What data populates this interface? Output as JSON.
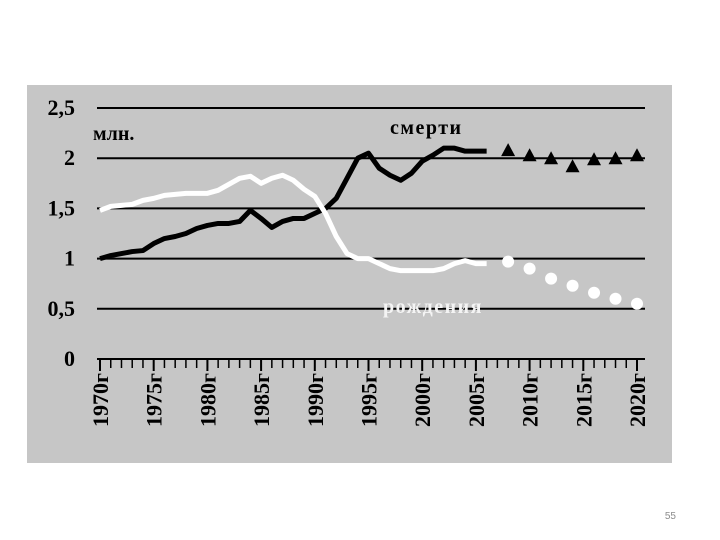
{
  "chart_data": {
    "type": "line",
    "annotations": [
      "млн.",
      "смерти",
      "рождения"
    ],
    "xlim": [
      1970,
      2020
    ],
    "xticks": [
      {
        "value": 1970,
        "label": "1970г"
      },
      {
        "value": 1975,
        "label": "1975г"
      },
      {
        "value": 1980,
        "label": "1980г"
      },
      {
        "value": 1985,
        "label": "1985г"
      },
      {
        "value": 1990,
        "label": "1990г"
      },
      {
        "value": 1995,
        "label": "1995г"
      },
      {
        "value": 2000,
        "label": "2000г"
      },
      {
        "value": 2005,
        "label": "2005г"
      },
      {
        "value": 2010,
        "label": "2010г"
      },
      {
        "value": 2015,
        "label": "2015г"
      },
      {
        "value": 2020,
        "label": "2020г"
      }
    ],
    "ylim": [
      0,
      2.5
    ],
    "yticks": [
      0,
      {
        "value": 0.5,
        "label": "0,5"
      },
      1,
      {
        "value": 1.5,
        "label": "1,5"
      },
      2,
      {
        "value": 2.5,
        "label": "2,5"
      }
    ],
    "grid": true,
    "series": [
      {
        "marker": "line",
        "color": "#000000",
        "x": [
          1970,
          1971,
          1972,
          1973,
          1974,
          1975,
          1976,
          1977,
          1978,
          1979,
          1980,
          1981,
          1982,
          1983,
          1984,
          1985,
          1986,
          1987,
          1988,
          1989,
          1990,
          1991,
          1992,
          1993,
          1994,
          1995,
          1996,
          1997,
          1998,
          1999,
          2000,
          2001,
          2002,
          2003,
          2004,
          2005,
          2006
        ],
        "values": [
          1.0,
          1.03,
          1.05,
          1.07,
          1.08,
          1.15,
          1.2,
          1.22,
          1.25,
          1.3,
          1.33,
          1.35,
          1.35,
          1.37,
          1.48,
          1.4,
          1.31,
          1.37,
          1.4,
          1.4,
          1.45,
          1.5,
          1.6,
          1.8,
          2.0,
          2.05,
          1.9,
          1.83,
          1.78,
          1.85,
          1.97,
          2.03,
          2.1,
          2.1,
          2.07,
          2.07,
          2.07
        ]
      },
      {
        "marker": "triangle",
        "color": "#000000",
        "x": [
          2008,
          2010,
          2012,
          2014,
          2016,
          2018,
          2020
        ],
        "values": [
          2.07,
          2.02,
          1.99,
          1.91,
          1.98,
          1.99,
          2.02
        ]
      },
      {
        "marker": "line",
        "color": "#ffffff",
        "x": [
          1970,
          1971,
          1972,
          1973,
          1974,
          1975,
          1976,
          1977,
          1978,
          1979,
          1980,
          1981,
          1982,
          1983,
          1984,
          1985,
          1986,
          1987,
          1988,
          1989,
          1990,
          1991,
          1992,
          1993,
          1994,
          1995,
          1996,
          1997,
          1998,
          1999,
          2000,
          2001,
          2002,
          2003,
          2004,
          2005,
          2006
        ],
        "values": [
          1.48,
          1.52,
          1.53,
          1.54,
          1.58,
          1.6,
          1.63,
          1.64,
          1.65,
          1.65,
          1.65,
          1.68,
          1.74,
          1.8,
          1.82,
          1.75,
          1.8,
          1.83,
          1.78,
          1.69,
          1.62,
          1.45,
          1.22,
          1.05,
          1.0,
          1.0,
          0.95,
          0.9,
          0.88,
          0.88,
          0.88,
          0.88,
          0.9,
          0.95,
          0.98,
          0.95,
          0.95
        ]
      },
      {
        "marker": "dot",
        "color": "#ffffff",
        "x": [
          2008,
          2010,
          2012,
          2014,
          2016,
          2018,
          2020
        ],
        "values": [
          0.97,
          0.9,
          0.8,
          0.73,
          0.66,
          0.6,
          0.55
        ]
      }
    ]
  },
  "slide": {
    "page_number": "55"
  }
}
